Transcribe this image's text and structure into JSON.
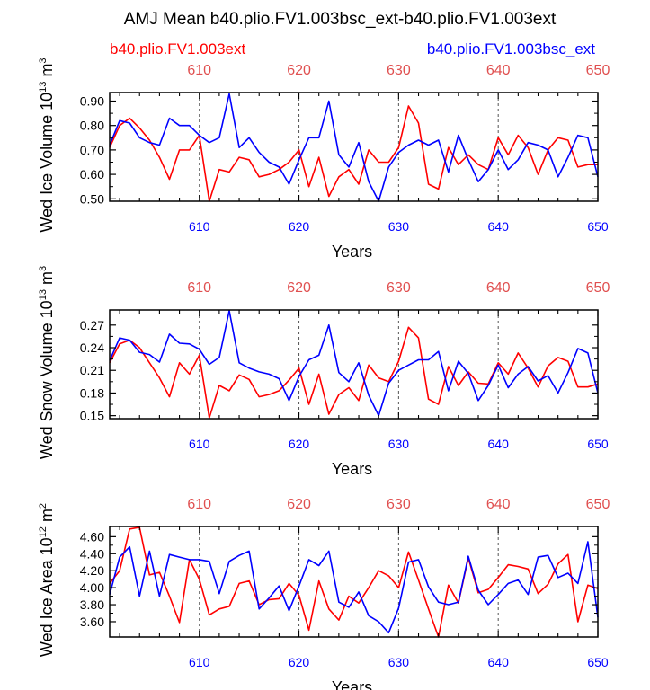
{
  "title": "AMJ Mean b40.plio.FV1.003bsc_ext-b40.plio.FV1.003ext",
  "legend": {
    "left": {
      "label": "b40.plio.FV1.003ext",
      "color": "#ff0000"
    },
    "right": {
      "label": "b40.plio.FV1.003bsc_ext",
      "color": "#0000ff"
    }
  },
  "colors": {
    "red": "#ff0000",
    "blue": "#0000ff",
    "top_ticks": "#e05050",
    "frame": "#000000"
  },
  "chart_data": [
    {
      "type": "line",
      "ylabel": "Wed Ice Volume 10",
      "ylabel_sup1": "13",
      "ylabel_tail": " m",
      "ylabel_sup2": "3",
      "xlabel": "Years",
      "xlim": [
        601,
        650
      ],
      "ylim": [
        0.49,
        0.935
      ],
      "yticks": [
        "0.90",
        "0.80",
        "0.70",
        "0.60",
        "0.50"
      ],
      "xticks": [
        "610",
        "620",
        "630",
        "640",
        "650"
      ],
      "ref_lines": [
        610,
        620,
        630,
        640
      ],
      "x": [
        601,
        602,
        603,
        604,
        605,
        606,
        607,
        608,
        609,
        610,
        611,
        612,
        613,
        614,
        615,
        616,
        617,
        618,
        619,
        620,
        621,
        622,
        623,
        624,
        625,
        626,
        627,
        628,
        629,
        630,
        631,
        632,
        633,
        634,
        635,
        636,
        637,
        638,
        639,
        640,
        641,
        642,
        643,
        644,
        645,
        646,
        647,
        648,
        649,
        650
      ],
      "series": [
        {
          "name": "b40.plio.FV1.003ext",
          "color": "#ff0000",
          "values": [
            0.71,
            0.8,
            0.83,
            0.79,
            0.74,
            0.67,
            0.58,
            0.7,
            0.7,
            0.76,
            0.49,
            0.62,
            0.61,
            0.67,
            0.66,
            0.59,
            0.6,
            0.62,
            0.65,
            0.7,
            0.55,
            0.67,
            0.51,
            0.59,
            0.62,
            0.56,
            0.7,
            0.65,
            0.65,
            0.71,
            0.88,
            0.81,
            0.56,
            0.54,
            0.71,
            0.64,
            0.68,
            0.64,
            0.62,
            0.75,
            0.68,
            0.76,
            0.71,
            0.6,
            0.7,
            0.75,
            0.74,
            0.63,
            0.64,
            0.64
          ]
        },
        {
          "name": "b40.plio.FV1.003bsc_ext",
          "color": "#0000ff",
          "values": [
            0.72,
            0.82,
            0.81,
            0.75,
            0.73,
            0.72,
            0.83,
            0.8,
            0.8,
            0.76,
            0.73,
            0.75,
            0.93,
            0.71,
            0.75,
            0.69,
            0.65,
            0.63,
            0.56,
            0.66,
            0.75,
            0.75,
            0.9,
            0.68,
            0.63,
            0.73,
            0.57,
            0.49,
            0.63,
            0.69,
            0.72,
            0.74,
            0.72,
            0.74,
            0.61,
            0.76,
            0.66,
            0.57,
            0.62,
            0.7,
            0.62,
            0.66,
            0.73,
            0.72,
            0.7,
            0.59,
            0.67,
            0.76,
            0.75,
            0.59
          ]
        }
      ]
    },
    {
      "type": "line",
      "ylabel": "Wed Snow Volume 10",
      "ylabel_sup1": "13",
      "ylabel_tail": " m",
      "ylabel_sup2": "3",
      "xlabel": "Years",
      "xlim": [
        601,
        650
      ],
      "ylim": [
        0.146,
        0.29
      ],
      "yticks": [
        "0.27",
        "0.24",
        "0.21",
        "0.18",
        "0.15"
      ],
      "xticks": [
        "610",
        "620",
        "630",
        "640",
        "650"
      ],
      "ref_lines": [
        610,
        620,
        630,
        640
      ],
      "x": [
        601,
        602,
        603,
        604,
        605,
        606,
        607,
        608,
        609,
        610,
        611,
        612,
        613,
        614,
        615,
        616,
        617,
        618,
        619,
        620,
        621,
        622,
        623,
        624,
        625,
        626,
        627,
        628,
        629,
        630,
        631,
        632,
        633,
        634,
        635,
        636,
        637,
        638,
        639,
        640,
        641,
        642,
        643,
        644,
        645,
        646,
        647,
        648,
        649,
        650
      ],
      "series": [
        {
          "name": "b40.plio.FV1.003ext",
          "color": "#ff0000",
          "values": [
            0.22,
            0.245,
            0.25,
            0.24,
            0.22,
            0.2,
            0.175,
            0.22,
            0.205,
            0.23,
            0.147,
            0.19,
            0.183,
            0.204,
            0.198,
            0.175,
            0.178,
            0.183,
            0.197,
            0.213,
            0.165,
            0.205,
            0.152,
            0.178,
            0.187,
            0.17,
            0.217,
            0.2,
            0.195,
            0.222,
            0.267,
            0.253,
            0.172,
            0.165,
            0.215,
            0.19,
            0.208,
            0.193,
            0.192,
            0.22,
            0.205,
            0.233,
            0.213,
            0.188,
            0.216,
            0.227,
            0.222,
            0.188,
            0.188,
            0.192
          ]
        },
        {
          "name": "b40.plio.FV1.003bsc_ext",
          "color": "#0000ff",
          "values": [
            0.223,
            0.253,
            0.25,
            0.234,
            0.231,
            0.221,
            0.258,
            0.246,
            0.245,
            0.238,
            0.218,
            0.227,
            0.289,
            0.22,
            0.213,
            0.208,
            0.205,
            0.199,
            0.17,
            0.202,
            0.224,
            0.23,
            0.27,
            0.207,
            0.195,
            0.22,
            0.177,
            0.15,
            0.193,
            0.21,
            0.217,
            0.224,
            0.224,
            0.235,
            0.183,
            0.222,
            0.206,
            0.17,
            0.19,
            0.217,
            0.187,
            0.205,
            0.215,
            0.196,
            0.203,
            0.18,
            0.207,
            0.239,
            0.233,
            0.18
          ]
        }
      ]
    },
    {
      "type": "line",
      "ylabel": "Wed Ice Area 10",
      "ylabel_sup1": "12",
      "ylabel_tail": " m",
      "ylabel_sup2": "2",
      "xlabel": "Years",
      "xlim": [
        601,
        650
      ],
      "ylim": [
        3.42,
        4.72
      ],
      "yticks": [
        "4.60",
        "4.40",
        "4.20",
        "4.00",
        "3.80",
        "3.60"
      ],
      "xticks": [
        "610",
        "620",
        "630",
        "640",
        "650"
      ],
      "ref_lines": [
        610,
        620,
        630,
        640
      ],
      "x": [
        601,
        602,
        603,
        604,
        605,
        606,
        607,
        608,
        609,
        610,
        611,
        612,
        613,
        614,
        615,
        616,
        617,
        618,
        619,
        620,
        621,
        622,
        623,
        624,
        625,
        626,
        627,
        628,
        629,
        630,
        631,
        632,
        633,
        634,
        635,
        636,
        637,
        638,
        639,
        640,
        641,
        642,
        643,
        644,
        645,
        646,
        647,
        648,
        649,
        650
      ],
      "series": [
        {
          "name": "b40.plio.FV1.003ext",
          "color": "#ff0000",
          "values": [
            4.05,
            4.2,
            4.69,
            4.71,
            4.15,
            4.18,
            3.9,
            3.59,
            4.33,
            4.1,
            3.68,
            3.75,
            3.78,
            4.05,
            4.08,
            3.8,
            3.86,
            3.87,
            4.05,
            3.91,
            3.5,
            4.08,
            3.75,
            3.62,
            3.9,
            3.82,
            4.0,
            4.2,
            4.14,
            4.0,
            4.42,
            4.09,
            3.75,
            3.42,
            4.03,
            3.82,
            4.35,
            3.94,
            3.98,
            4.12,
            4.27,
            4.25,
            4.22,
            3.93,
            4.04,
            4.28,
            4.39,
            3.6,
            4.03,
            3.99
          ]
        },
        {
          "name": "b40.plio.FV1.003bsc_ext",
          "color": "#0000ff",
          "values": [
            3.92,
            4.36,
            4.48,
            3.9,
            4.43,
            3.9,
            4.39,
            4.36,
            4.33,
            4.33,
            4.31,
            3.93,
            4.31,
            4.38,
            4.43,
            3.75,
            3.88,
            4.02,
            3.73,
            4.02,
            4.33,
            4.26,
            4.43,
            3.83,
            3.77,
            3.95,
            3.67,
            3.6,
            3.47,
            3.76,
            4.3,
            4.33,
            4.01,
            3.83,
            3.8,
            3.83,
            4.37,
            3.97,
            3.8,
            3.92,
            4.05,
            4.09,
            3.92,
            4.36,
            4.38,
            4.12,
            4.17,
            4.05,
            4.54,
            3.65
          ]
        }
      ]
    }
  ]
}
